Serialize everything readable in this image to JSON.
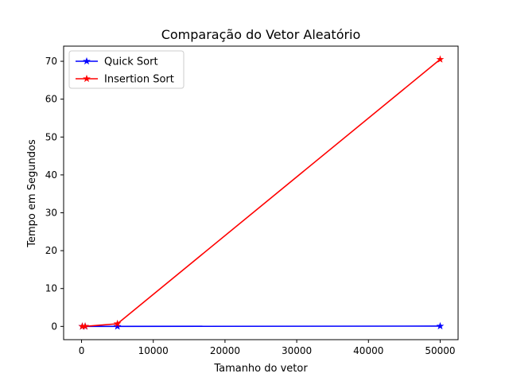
{
  "chart_data": {
    "type": "line",
    "title": "Comparação do Vetor Aleatório",
    "xlabel": "Tamanho do vetor",
    "ylabel": "Tempo em Segundos",
    "xlim": [
      -2500,
      52500
    ],
    "ylim": [
      -3.5,
      74
    ],
    "xticks": [
      0,
      10000,
      20000,
      30000,
      40000,
      50000
    ],
    "yticks": [
      0,
      10,
      20,
      30,
      40,
      50,
      60,
      70
    ],
    "legend_position": "upper-left",
    "grid": false,
    "series": [
      {
        "name": "Quick Sort",
        "color": "#0000ff",
        "marker": "star",
        "x": [
          100,
          500,
          5000,
          50000
        ],
        "y": [
          0.0,
          0.0,
          0.0,
          0.08
        ]
      },
      {
        "name": "Insertion Sort",
        "color": "#ff0000",
        "marker": "star",
        "x": [
          100,
          500,
          5000,
          50000
        ],
        "y": [
          0.0,
          0.02,
          0.7,
          70.5
        ]
      }
    ]
  }
}
